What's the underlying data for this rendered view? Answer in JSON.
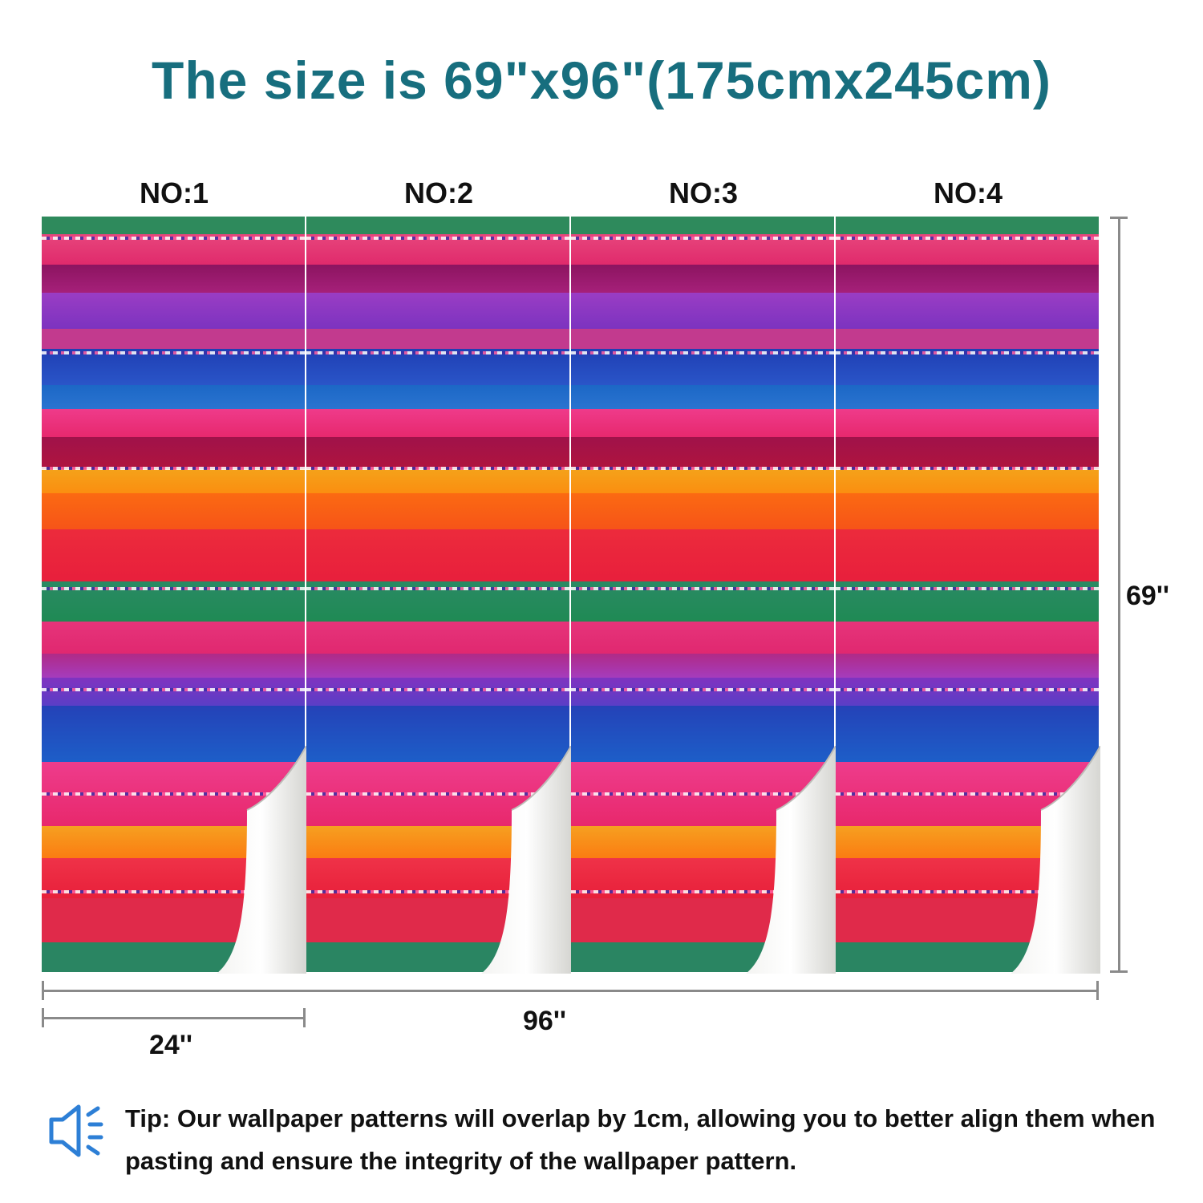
{
  "title": "The size is 69\"x96\"(175cmx245cm)",
  "panels": [
    {
      "label": "NO:1"
    },
    {
      "label": "NO:2"
    },
    {
      "label": "NO:3"
    },
    {
      "label": "NO:4"
    }
  ],
  "dimensions": {
    "height_label": "69''",
    "total_width_label": "96''",
    "panel_width_label": "24''"
  },
  "tip": {
    "icon": "speaker-icon",
    "text": "Tip: Our wallpaper patterns will overlap by 1cm, allowing you to better align them when pasting and ensure the integrity of the wallpaper pattern."
  },
  "colors": {
    "title": "#176e7e",
    "icon": "#2d7fd6",
    "dimension_lines": "#8a8a8a"
  }
}
